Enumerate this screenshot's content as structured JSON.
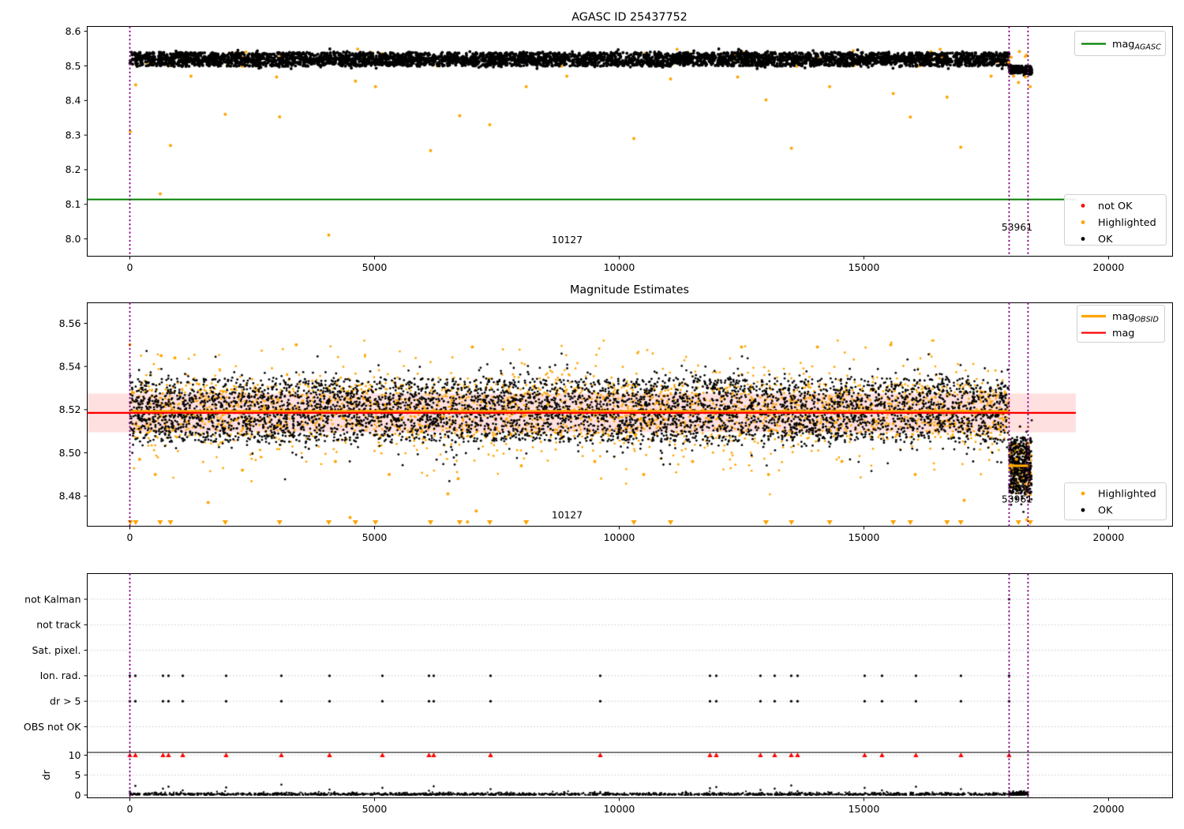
{
  "figure": {
    "background": "#ffffff"
  },
  "colors": {
    "ok": "#000000",
    "highlighted": "#ffa500",
    "not_ok": "#ff0000",
    "mag_agasc_line": "#008000",
    "mag_line": "#ff0000",
    "mag_obsid_line": "#ffa500",
    "band_fill": "rgba(255,0,0,0.12)",
    "vline": "#800080",
    "grid": "#c8c8c8",
    "spine": "#000000",
    "legend_edge": "#d0d0d0"
  },
  "chart_data": [
    {
      "type": "scatter",
      "title": "AGASC ID 25437752",
      "xlim": [
        -871,
        21308
      ],
      "ylim": [
        7.95,
        8.614
      ],
      "xticks": [
        0,
        5000,
        10000,
        15000,
        20000
      ],
      "xtick_labels": [
        "0",
        "5000",
        "10000",
        "15000",
        "20000"
      ],
      "yticks": [
        8.0,
        8.1,
        8.2,
        8.3,
        8.4,
        8.5,
        8.6
      ],
      "ytick_labels": [
        "8.0",
        "8.1",
        "8.2",
        "8.3",
        "8.4",
        "8.5",
        "8.6"
      ],
      "legends": [
        {
          "position": "upper-right",
          "items": [
            {
              "label_main": "mag",
              "label_sub": "AGASC",
              "marker": "line",
              "color": "#008000"
            }
          ]
        },
        {
          "position": "lower-right",
          "items": [
            {
              "label_main": "not OK",
              "marker": "dot",
              "color": "#ff0000"
            },
            {
              "label_main": "Highlighted",
              "marker": "dot",
              "color": "#ffa500"
            },
            {
              "label_main": "OK",
              "marker": "dot",
              "color": "#000000"
            }
          ]
        }
      ],
      "hline": {
        "y": 8.114,
        "x0": -871,
        "x1": 19330,
        "color": "#008000"
      },
      "vlines": [
        0,
        17968,
        18355
      ],
      "annotations": [
        {
          "text": "10127",
          "x": 8936,
          "y": 7.998
        },
        {
          "text": "53961",
          "x": 18130,
          "y": 8.034
        }
      ],
      "series": {
        "ok_band": {
          "x0": 0,
          "x1": 17968,
          "mean": 8.519,
          "sd": 0.0095,
          "uniform": [
            8.499,
            8.539
          ],
          "ufrac": 0.6,
          "clip": [
            8.492,
            8.549
          ],
          "count": 4600
        },
        "ok_tail": {
          "x0": 17968,
          "x1": 18430,
          "mean": 8.4945,
          "mean_slope": -2.4e-05,
          "sd": 0.005,
          "uniform": [
            8.478,
            8.5
          ],
          "ufrac": 0.55,
          "clip": [
            8.468,
            8.505
          ],
          "count": 300
        },
        "highlighted_band": {
          "x0": 0,
          "x1": 18400,
          "mean": 8.52,
          "sd": 0.013,
          "uniform": [
            8.497,
            8.544
          ],
          "ufrac": 0.4,
          "clip": [
            8.488,
            8.551
          ],
          "count": 80
        },
        "highlighted_outliers": [
          [
            10,
            8.31
          ],
          [
            120,
            8.445
          ],
          [
            620,
            8.13
          ],
          [
            830,
            8.27
          ],
          [
            1250,
            8.47
          ],
          [
            1950,
            8.36
          ],
          [
            3000,
            8.468
          ],
          [
            3060,
            8.353
          ],
          [
            4065,
            8.011
          ],
          [
            4610,
            8.456
          ],
          [
            5020,
            8.44
          ],
          [
            6145,
            8.255
          ],
          [
            6740,
            8.356
          ],
          [
            7355,
            8.33
          ],
          [
            8100,
            8.44
          ],
          [
            8930,
            8.47
          ],
          [
            10300,
            8.29
          ],
          [
            11050,
            8.462
          ],
          [
            12420,
            8.468
          ],
          [
            13000,
            8.402
          ],
          [
            13520,
            8.262
          ],
          [
            14300,
            8.44
          ],
          [
            15600,
            8.42
          ],
          [
            15950,
            8.352
          ],
          [
            16700,
            8.41
          ],
          [
            16980,
            8.265
          ],
          [
            17600,
            8.47
          ],
          [
            17960,
            8.51
          ],
          [
            18010,
            8.525
          ],
          [
            18060,
            8.47
          ],
          [
            18160,
            8.452
          ],
          [
            18300,
            8.468
          ],
          [
            18400,
            8.44
          ]
        ]
      }
    },
    {
      "type": "scatter",
      "title": "Magnitude Estimates",
      "xlim": [
        -871,
        21308
      ],
      "ylim": [
        8.466,
        8.5695
      ],
      "xticks": [
        0,
        5000,
        10000,
        15000,
        20000
      ],
      "xtick_labels": [
        "0",
        "5000",
        "10000",
        "15000",
        "20000"
      ],
      "yticks": [
        8.48,
        8.5,
        8.52,
        8.54,
        8.56
      ],
      "ytick_labels": [
        "8.48",
        "8.50",
        "8.52",
        "8.54",
        "8.56"
      ],
      "legends": [
        {
          "position": "upper-right",
          "items": [
            {
              "label_main": "mag",
              "label_sub": "OBSID",
              "marker": "line",
              "color": "#ffa500"
            },
            {
              "label_main": "mag",
              "marker": "line",
              "color": "#ff0000"
            }
          ]
        },
        {
          "position": "lower-right",
          "items": [
            {
              "label_main": "Highlighted",
              "marker": "dot",
              "color": "#ffa500"
            },
            {
              "label_main": "OK",
              "marker": "dot",
              "color": "#000000"
            }
          ]
        }
      ],
      "band": {
        "y0": 8.5095,
        "y1": 8.5275,
        "x0": -871,
        "x1": 19330
      },
      "mag_line": {
        "y": 8.5185,
        "x0": -871,
        "x1": 19330,
        "color": "#ff0000"
      },
      "obsid_segments": [
        {
          "x0": 0,
          "x1": 17968,
          "y": 8.5192
        },
        {
          "x0": 17968,
          "x1": 18355,
          "y": 8.494
        }
      ],
      "vlines": [
        0,
        17968,
        18355
      ],
      "annotations": [
        {
          "text": "10127",
          "x": 8936,
          "y": 8.4712
        },
        {
          "text": "53961",
          "x": 18130,
          "y": 8.4785
        }
      ],
      "series": {
        "highlighted_base": {
          "x0": 0,
          "x1": 17968,
          "mean": 8.519,
          "sd": 0.012,
          "uniform": [
            8.507,
            8.532
          ],
          "ufrac": 0.5,
          "clip": [
            8.468,
            8.552
          ],
          "count": 2600
        },
        "ok_base": {
          "x0": 0,
          "x1": 17968,
          "mean": 8.519,
          "sd": 0.0085,
          "uniform": [
            8.505,
            8.5345
          ],
          "ufrac": 0.55,
          "clip": [
            8.4695,
            8.5515
          ],
          "count": 5200
        },
        "highlighted_cluster": {
          "x0": 17968,
          "x1": 18430,
          "mean": 8.4935,
          "sd": 0.007,
          "uniform": [
            8.483,
            8.505
          ],
          "ufrac": 0.55,
          "clip": [
            8.468,
            8.512
          ],
          "count": 220
        },
        "ok_cluster": {
          "x0": 17968,
          "x1": 18430,
          "mean": 8.4935,
          "sd": 0.008,
          "uniform": [
            8.481,
            8.507
          ],
          "ufrac": 0.55,
          "clip": [
            8.468,
            8.517
          ],
          "count": 480
        },
        "highlighted_outliers": [
          [
            0,
            8.55
          ],
          [
            640,
            8.545
          ],
          [
            920,
            8.544
          ],
          [
            200,
            8.497
          ],
          [
            520,
            8.49
          ],
          [
            1600,
            8.477
          ],
          [
            2300,
            8.492
          ],
          [
            3400,
            8.55
          ],
          [
            4200,
            8.496
          ],
          [
            4500,
            8.47
          ],
          [
            5300,
            8.49
          ],
          [
            6500,
            8.481
          ],
          [
            6710,
            8.488
          ],
          [
            6900,
            8.468
          ],
          [
            7000,
            8.549
          ],
          [
            7080,
            8.473
          ],
          [
            8000,
            8.494
          ],
          [
            9500,
            8.496
          ],
          [
            10500,
            8.49
          ],
          [
            11500,
            8.496
          ],
          [
            12500,
            8.549
          ],
          [
            13050,
            8.49
          ],
          [
            14050,
            8.549
          ],
          [
            14550,
            8.496
          ],
          [
            15550,
            8.55
          ],
          [
            16050,
            8.49
          ],
          [
            17050,
            8.478
          ],
          [
            18120,
            8.497
          ],
          [
            18330,
            8.469
          ]
        ],
        "clipped_low_note": "orange triangle-down markers on bottom edge at x of chart-1 outliers with y < 8.466"
      }
    },
    {
      "type": "scatter",
      "title": "",
      "categories": [
        "not Kalman",
        "not track",
        "Sat. pixel.",
        "Ion. rad.",
        "dr > 5",
        "OBS not OK"
      ],
      "dr_axis": {
        "label": "dr",
        "ticks": [
          10,
          5,
          0
        ],
        "tick_labels": [
          "10",
          "5",
          "0"
        ]
      },
      "xticks": [
        0,
        5000,
        10000,
        15000,
        20000
      ],
      "xtick_labels": [
        "0",
        "5000",
        "10000",
        "15000",
        "20000"
      ],
      "vlines": [
        0,
        17968,
        18355
      ],
      "grid": "dotted horizontal at every category row and dr 10/5/0",
      "separator_dr": 10.8,
      "events_x": [
        0,
        113,
        677,
        790,
        1081,
        1968,
        3097,
        4081,
        5161,
        6113,
        6210,
        7371,
        9613,
        11855,
        11984,
        12887,
        13177,
        13516,
        13645,
        15016,
        15371,
        16064,
        16984,
        17968
      ],
      "event_spike_dr": [
        0.9,
        2.3,
        1.6,
        2.1,
        1.2,
        1.9,
        2.6,
        1.4,
        1.8,
        1.1,
        2.2,
        1.5,
        0.8,
        1.7,
        2.0,
        1.3,
        1.6,
        2.4,
        1.0,
        1.8,
        1.2,
        2.1,
        1.5,
        0.9
      ],
      "rows_with_event_dots": [
        "Ion. rad.",
        "dr > 5"
      ],
      "red_clipped_at_dr": 10,
      "not_kalman_x": [
        17968
      ],
      "dr_series": {
        "x0": 0,
        "x1": 18355,
        "count": 1900,
        "sd": 0.28,
        "max": 0.95
      },
      "dr_cluster_extra": {
        "x0": 17968,
        "x1": 18355,
        "count": 120,
        "mean": 0.3,
        "sd": 0.3
      }
    }
  ]
}
